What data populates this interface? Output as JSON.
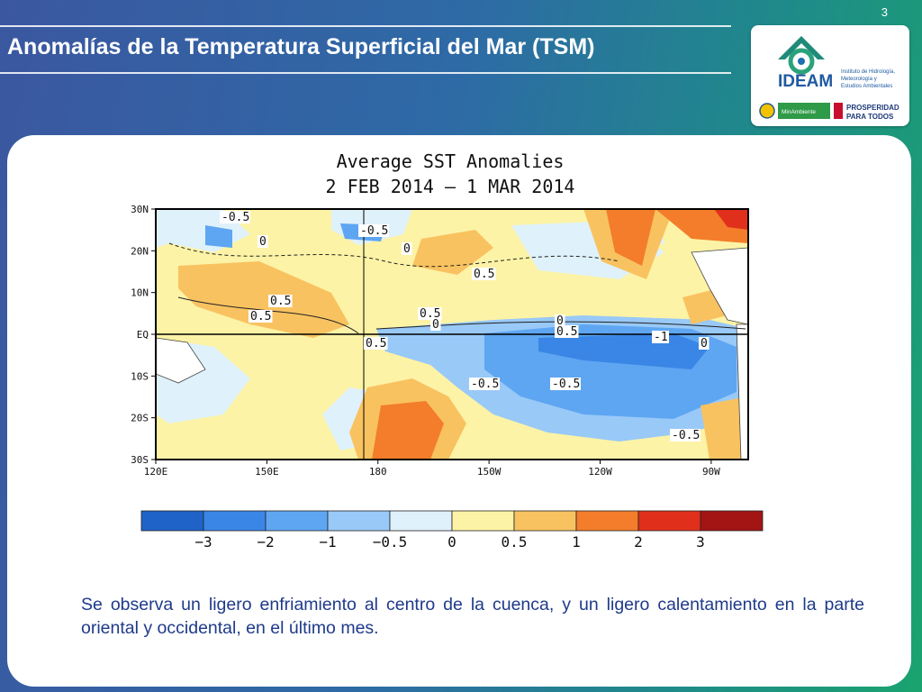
{
  "slide": {
    "number": "3",
    "title": "Anomalías de la Temperatura Superficial del Mar (TSM)",
    "caption": "Se observa un ligero enfriamiento al centro de la cuenca, y un ligero calentamiento en la parte oriental y occidental, en el último mes."
  },
  "logo": {
    "name": "IDEAM",
    "subtitle_lines": [
      "Instituto de Hidrología,",
      "Meteorología y",
      "Estudios Ambientales"
    ],
    "partner_left": "MinAmbiente",
    "partner_right_lines": [
      "PROSPERIDAD",
      "PARA TODOS"
    ]
  },
  "chart_data": {
    "type": "heatmap",
    "title": "Average SST Anomalies",
    "subtitle": "2 FEB 2014 – 1 MAR 2014",
    "x_ticks": [
      "120E",
      "150E",
      "180",
      "150W",
      "120W",
      "90W"
    ],
    "y_ticks": [
      "30N",
      "20N",
      "10N",
      "EQ",
      "10S",
      "20S",
      "30S"
    ],
    "contour_labels": [
      "-0.5",
      "-0.5",
      "0",
      "0",
      "0.5",
      "0.5",
      "0.5",
      "0.5",
      "0.5",
      "0",
      "-0.5",
      "0",
      "0.5",
      "-1",
      "-0.5",
      "-0.5",
      "0"
    ],
    "colorbar": {
      "labels": [
        "−3",
        "−2",
        "−1",
        "−0.5",
        "0",
        "0.5",
        "1",
        "2",
        "3"
      ],
      "colors": [
        "#1f63c8",
        "#3a86e6",
        "#5ea6f2",
        "#99c9f7",
        "#dff1fb",
        "#fdf3a6",
        "#f9c260",
        "#f37d2a",
        "#e0301c",
        "#a31414"
      ]
    }
  }
}
